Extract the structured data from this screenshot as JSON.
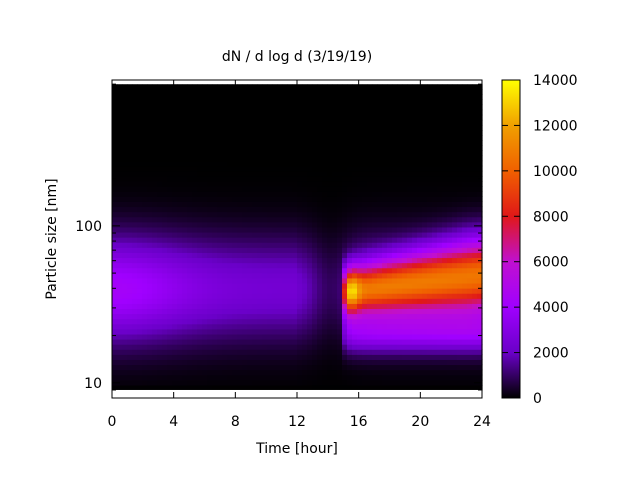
{
  "chart_data": {
    "type": "heatmap",
    "title": "dN / d log d (3/19/19)",
    "xlabel": "Time [hour]",
    "ylabel": "Particle size [nm]",
    "x_range": [
      0,
      24
    ],
    "x_ticks": [
      0,
      4,
      8,
      12,
      16,
      20,
      24
    ],
    "x_tick_labels": [
      "0",
      "4",
      "8",
      "12",
      "16",
      "20",
      "24"
    ],
    "y_scale": "log",
    "y_range": [
      8,
      850
    ],
    "y_ticks": [
      10,
      100
    ],
    "y_tick_labels": [
      "10",
      "100"
    ],
    "colorbar": {
      "range": [
        0,
        14000
      ],
      "ticks": [
        0,
        2000,
        4000,
        6000,
        8000,
        10000,
        12000,
        14000
      ],
      "tick_labels": [
        "0",
        "2000",
        "4000",
        "6000",
        "8000",
        "10000",
        "12000",
        "14000"
      ],
      "colormap": "black-purple-red-orange-yellow",
      "stops": [
        "#000000",
        "#6a00c8",
        "#a000ff",
        "#c010d0",
        "#e01818",
        "#f06000",
        "#f0a000",
        "#ffff00"
      ]
    },
    "data_size_range_nm": [
      9,
      800
    ],
    "features": [
      {
        "time_h": 0.5,
        "size_nm": 45,
        "dNdlogd": 4500
      },
      {
        "time_h": 6,
        "size_nm": 60,
        "dNdlogd": 3000
      },
      {
        "time_h": 14,
        "size_nm": 30,
        "dNdlogd": 1500
      },
      {
        "time_h": 15.3,
        "size_nm": 38,
        "dNdlogd": 12500
      },
      {
        "time_h": 19.5,
        "size_nm": 55,
        "dNdlogd": 9000
      },
      {
        "time_h": 23.5,
        "size_nm": 65,
        "dNdlogd": 8000
      }
    ],
    "grid": false,
    "legend": "colorbar-right"
  }
}
